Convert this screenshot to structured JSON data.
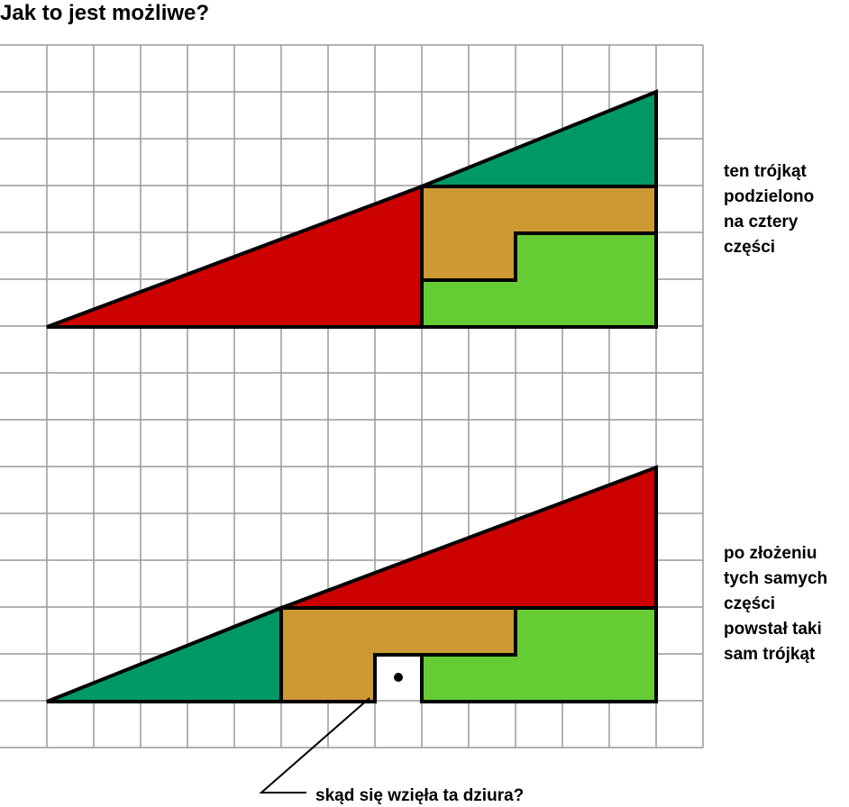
{
  "title": "Jak to jest możliwe?",
  "captions": {
    "top": [
      "ten trójkąt",
      "podzielono",
      "na cztery",
      "części"
    ],
    "bottom": [
      "po złożeniu",
      "tych samych",
      "części",
      "powstał taki",
      "sam trójkąt"
    ],
    "hole": "skąd się wzięła ta dziura?"
  }
}
